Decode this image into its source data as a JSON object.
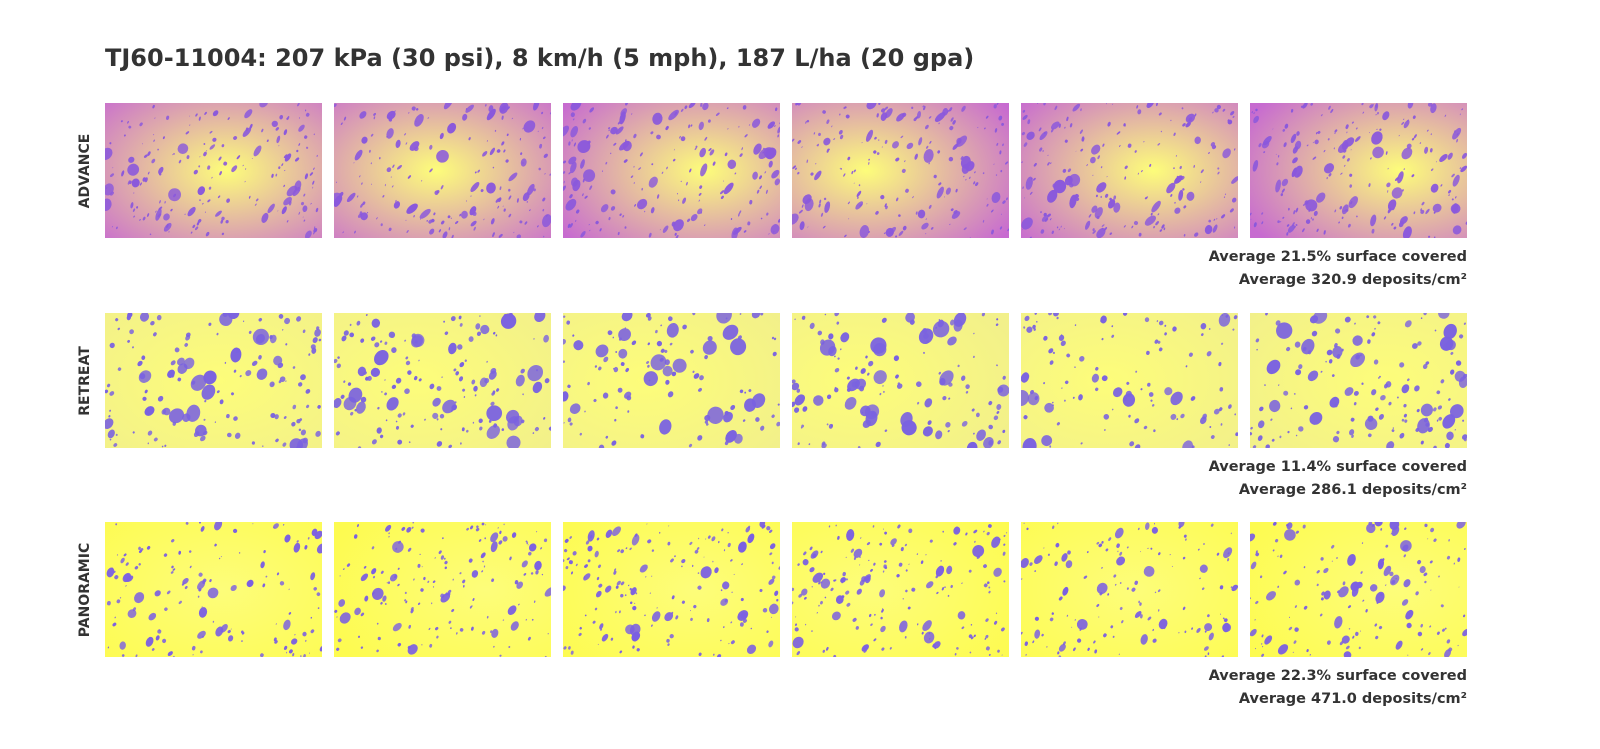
{
  "header": {
    "title": "TJ60-11004: 207 kPa (30 psi), 8 km/h (5 mph), 187 L/ha (20 gpa)"
  },
  "rows": [
    {
      "label": "ADVANCE",
      "captions": [
        "Average 21.5% surface covered",
        "Average 320.9 deposits/cm²"
      ]
    },
    {
      "label": "RETREAT",
      "captions": [
        "Average 11.4% surface covered",
        "Average 286.1 deposits/cm²"
      ]
    },
    {
      "label": "PANORAMIC",
      "captions": [
        "Average 22.3% surface covered",
        "Average 471.0 deposits/cm²"
      ]
    }
  ]
}
